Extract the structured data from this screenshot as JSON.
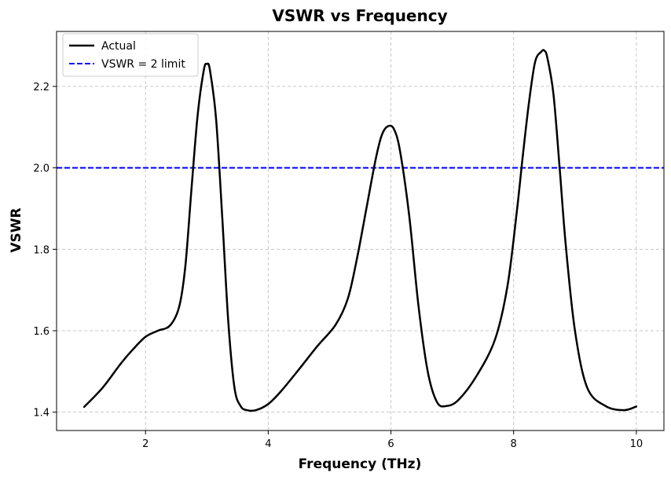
{
  "chart_data": {
    "type": "line",
    "title": "VSWR vs Frequency",
    "xlabel": "Frequency (THz)",
    "ylabel": "VSWR",
    "xlim": [
      0.55,
      10.45
    ],
    "ylim": [
      1.355,
      2.335
    ],
    "xticks": [
      2,
      4,
      6,
      8,
      10
    ],
    "xtick_labels": [
      "2",
      "4",
      "6",
      "8",
      "10"
    ],
    "yticks": [
      1.4,
      1.6,
      1.8,
      2.0,
      2.2
    ],
    "ytick_labels": [
      "1.4",
      "1.6",
      "1.8",
      "2.0",
      "2.2"
    ],
    "grid": true,
    "legend_position": "top-left",
    "series": [
      {
        "name": "Actual",
        "style": "solid",
        "color": "#000000",
        "x": [
          1.0,
          1.3,
          1.6,
          1.8,
          2.0,
          2.2,
          2.4,
          2.55,
          2.65,
          2.75,
          2.85,
          2.95,
          3.0,
          3.05,
          3.15,
          3.25,
          3.35,
          3.45,
          3.55,
          3.65,
          3.8,
          4.0,
          4.2,
          4.5,
          4.8,
          5.1,
          5.3,
          5.45,
          5.6,
          5.75,
          5.85,
          5.95,
          6.05,
          6.15,
          6.3,
          6.45,
          6.6,
          6.75,
          6.9,
          7.1,
          7.4,
          7.7,
          7.9,
          8.05,
          8.15,
          8.25,
          8.35,
          8.45,
          8.5,
          8.55,
          8.65,
          8.75,
          8.85,
          9.0,
          9.2,
          9.5,
          9.8,
          10.0
        ],
        "y": [
          1.413,
          1.46,
          1.52,
          1.555,
          1.585,
          1.6,
          1.613,
          1.66,
          1.76,
          1.95,
          2.13,
          2.24,
          2.255,
          2.24,
          2.12,
          1.88,
          1.62,
          1.46,
          1.415,
          1.405,
          1.405,
          1.42,
          1.45,
          1.505,
          1.562,
          1.615,
          1.68,
          1.78,
          1.9,
          2.02,
          2.08,
          2.102,
          2.095,
          2.04,
          1.88,
          1.66,
          1.5,
          1.425,
          1.415,
          1.43,
          1.49,
          1.58,
          1.71,
          1.89,
          2.03,
          2.16,
          2.26,
          2.285,
          2.288,
          2.27,
          2.18,
          2.0,
          1.81,
          1.6,
          1.46,
          1.415,
          1.405,
          1.414
        ]
      },
      {
        "name": "VSWR = 2 limit",
        "style": "dashed",
        "color": "#0000ff",
        "hline": 2.0
      }
    ]
  }
}
